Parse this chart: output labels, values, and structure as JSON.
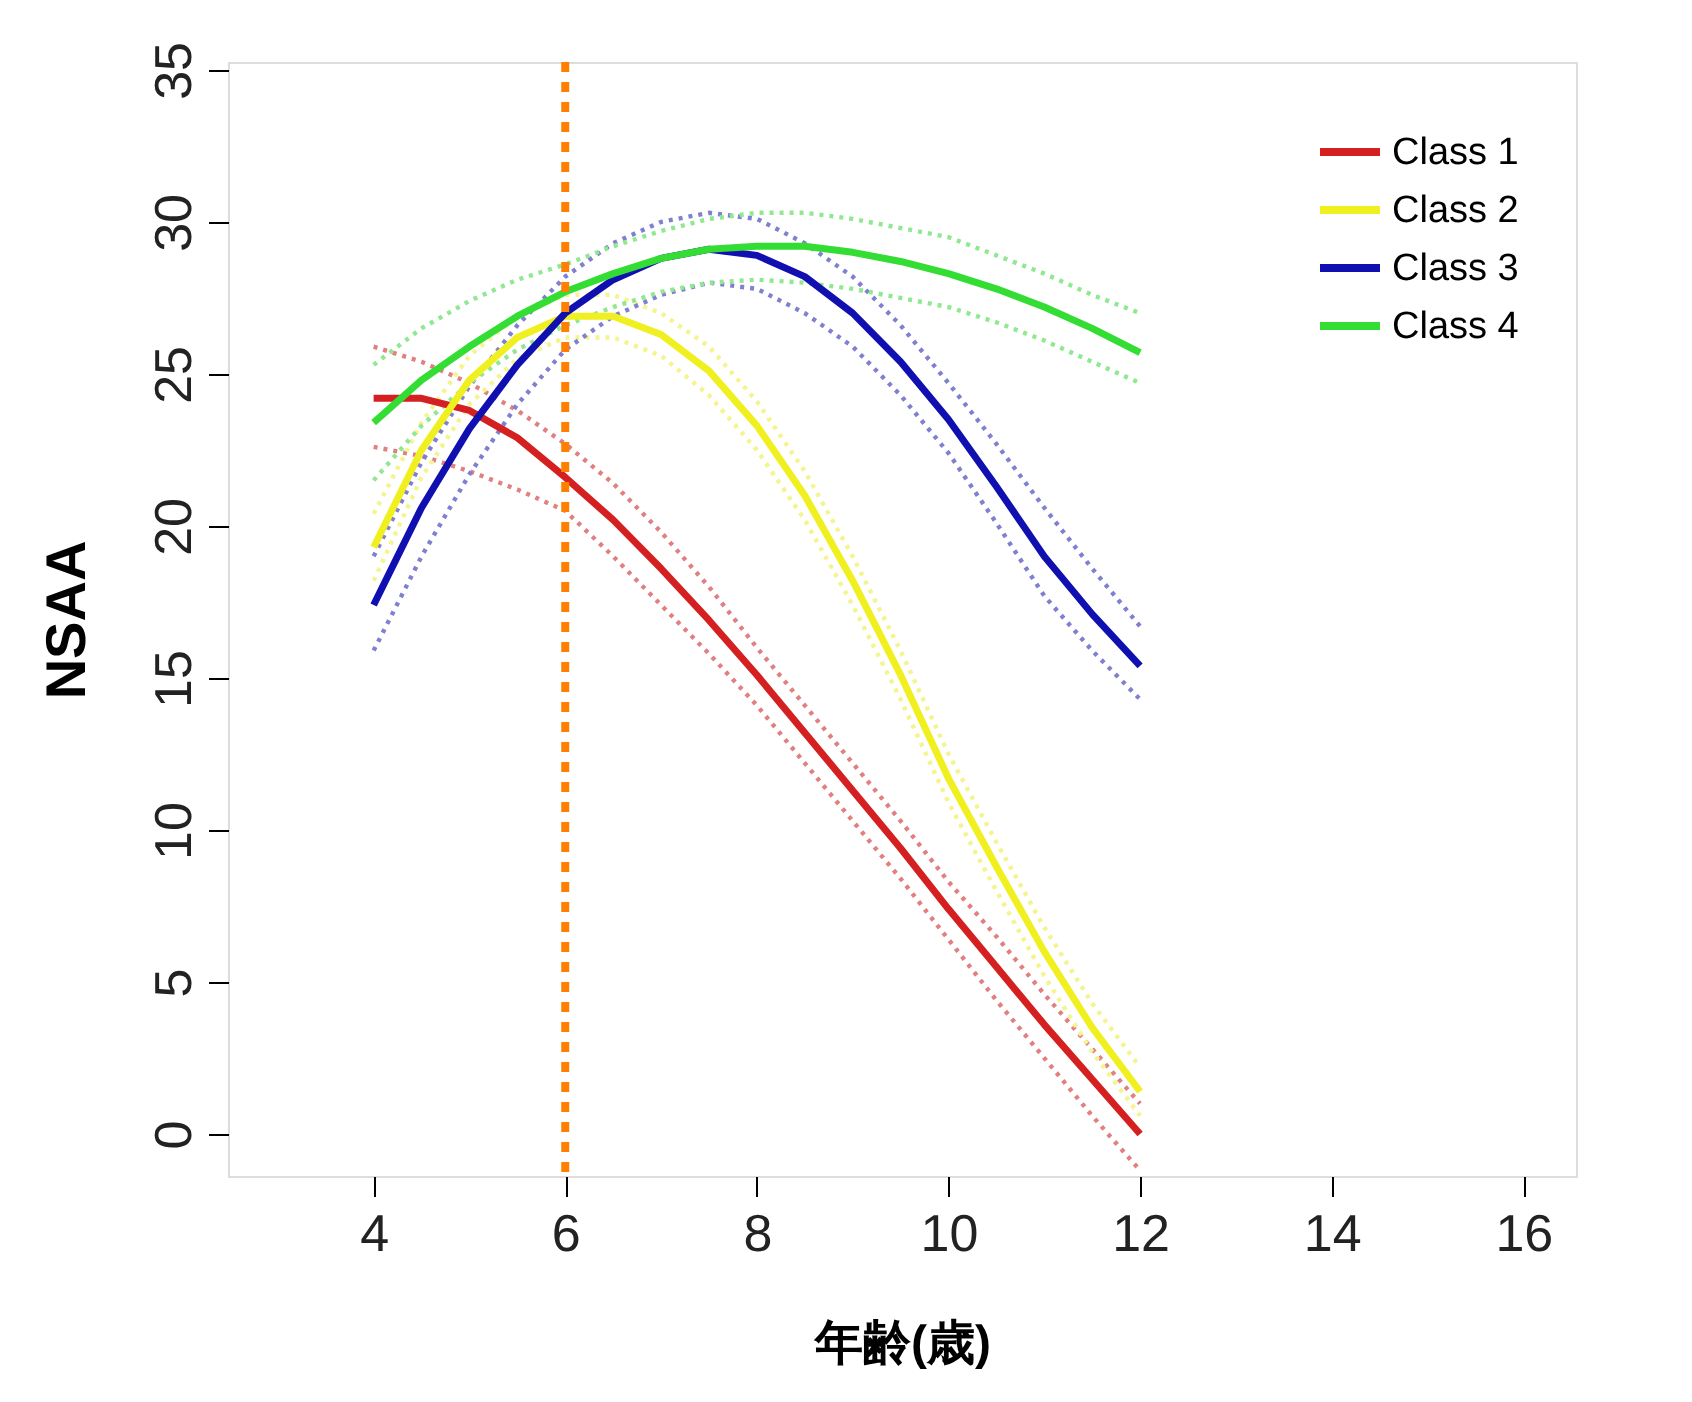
{
  "chart_data": {
    "type": "line",
    "xlabel": "年齢(歳)",
    "ylabel": "NSAA",
    "x": [
      4,
      4.5,
      5,
      5.5,
      6,
      6.5,
      7,
      7.5,
      8,
      8.5,
      9,
      9.5,
      10,
      10.5,
      11,
      11.5,
      12
    ],
    "series": [
      {
        "name": "Class 1",
        "color": "#d42020",
        "values": [
          24.2,
          24.2,
          23.8,
          22.9,
          21.6,
          20.2,
          18.6,
          16.9,
          15.1,
          13.2,
          11.3,
          9.4,
          7.4,
          5.5,
          3.6,
          1.8,
          0
        ]
      },
      {
        "name": "Class 2",
        "color": "#f0f020",
        "values": [
          19.3,
          22.5,
          24.8,
          26.2,
          26.9,
          26.9,
          26.3,
          25.1,
          23.3,
          21.0,
          18.2,
          15.1,
          11.7,
          8.8,
          6.0,
          3.5,
          1.4
        ]
      },
      {
        "name": "Class 3",
        "color": "#1010b0",
        "values": [
          17.4,
          20.6,
          23.2,
          25.3,
          27.0,
          28.1,
          28.8,
          29.1,
          28.9,
          28.2,
          27.0,
          25.4,
          23.5,
          21.3,
          19.0,
          17.1,
          15.4
        ]
      },
      {
        "name": "Class 4",
        "color": "#33dd33",
        "values": [
          23.4,
          24.8,
          25.9,
          26.9,
          27.7,
          28.3,
          28.8,
          29.1,
          29.2,
          29.2,
          29.0,
          28.7,
          28.3,
          27.8,
          27.2,
          26.5,
          25.7
        ]
      },
      {
        "color": "#e08080",
        "line_style": "dotted",
        "values": [
          22.6,
          22.3,
          21.8,
          21.2,
          20.5,
          19.0,
          17.4,
          15.8,
          14.1,
          12.2,
          10.3,
          8.4,
          6.4,
          4.4,
          2.5,
          0.6,
          -1.2
        ]
      },
      {
        "color": "#e08080",
        "line_style": "dotted",
        "values": [
          25.9,
          25.4,
          24.7,
          23.8,
          22.7,
          21.4,
          19.8,
          18.0,
          16.0,
          14.1,
          12.2,
          10.3,
          8.3,
          6.5,
          4.6,
          2.8,
          1.0
        ]
      },
      {
        "color": "#f4f490",
        "line_style": "dotted",
        "values": [
          18.2,
          21.6,
          24.0,
          25.5,
          26.2,
          26.2,
          25.6,
          24.3,
          22.5,
          20.2,
          17.4,
          14.3,
          10.9,
          8.0,
          5.2,
          2.7,
          0.6
        ]
      },
      {
        "color": "#f4f490",
        "line_style": "dotted",
        "values": [
          20.4,
          23.4,
          25.6,
          26.9,
          27.6,
          27.6,
          27.0,
          25.9,
          24.1,
          21.8,
          19.0,
          15.9,
          12.5,
          9.6,
          6.8,
          4.3,
          2.2
        ]
      },
      {
        "color": "#8080d0",
        "line_style": "dotted",
        "values": [
          15.9,
          19.0,
          21.7,
          24.0,
          25.8,
          26.9,
          27.6,
          28.0,
          27.8,
          27.0,
          25.9,
          24.3,
          22.4,
          20.1,
          17.7,
          15.9,
          14.3
        ]
      },
      {
        "color": "#8080d0",
        "line_style": "dotted",
        "values": [
          19.0,
          22.1,
          24.6,
          26.6,
          28.2,
          29.3,
          30.0,
          30.3,
          30.1,
          29.3,
          28.2,
          26.6,
          24.7,
          22.7,
          20.6,
          18.6,
          16.7
        ]
      },
      {
        "color": "#90e890",
        "line_style": "dotted",
        "values": [
          21.5,
          23.3,
          24.7,
          25.8,
          26.6,
          27.2,
          27.7,
          28.0,
          28.1,
          28.0,
          27.8,
          27.5,
          27.2,
          26.7,
          26.1,
          25.4,
          24.7
        ]
      },
      {
        "color": "#90e890",
        "line_style": "dotted",
        "values": [
          25.3,
          26.5,
          27.4,
          28.1,
          28.6,
          29.2,
          29.7,
          30.1,
          30.3,
          30.3,
          30.1,
          29.8,
          29.5,
          28.9,
          28.3,
          27.6,
          27.0
        ]
      }
    ],
    "xlim": [
      2.48,
      16.55
    ],
    "xticks": [
      4,
      6,
      8,
      10,
      12,
      14,
      16
    ],
    "ylim": [
      -1.38,
      35.26
    ],
    "yticks": [
      0,
      5,
      10,
      15,
      20,
      25,
      30,
      35
    ],
    "ref_lines": [
      {
        "axis": "x",
        "value": 6,
        "color": "#ff8000",
        "line_style": "dotted"
      }
    ],
    "legend": "top right",
    "grid": false,
    "line_style": "solid",
    "marker": "none"
  }
}
